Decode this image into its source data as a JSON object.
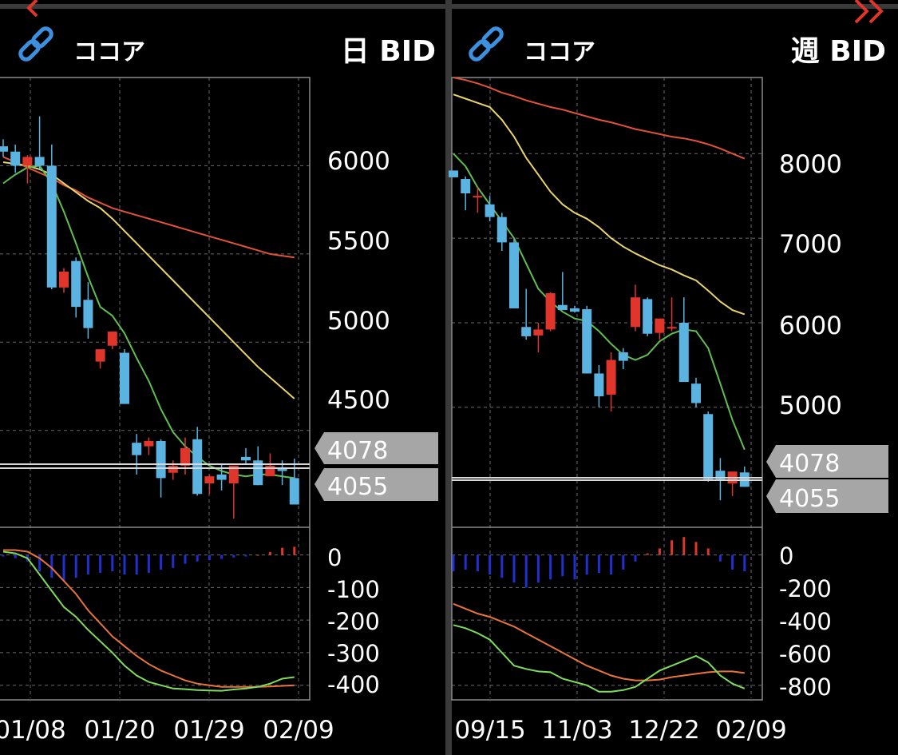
{
  "colors": {
    "background": "#000000",
    "grid": "#6a6a6a",
    "frame": "#8a8a8a",
    "separator": "#3a3a3a",
    "candle_up": "#e0352b",
    "candle_down": "#5ab3e0",
    "ma_short": "#5fbf4f",
    "ma_mid": "#e9d46a",
    "ma_long": "#e0533a",
    "macd_line": "#7ddc5a",
    "signal_line": "#e8743a",
    "hist_pos": "#e0352b",
    "hist_neg": "#1f2fd0",
    "price_tag": "#a6a6a6",
    "link_icon": "#3d8fe0",
    "nav_arrow": "#e0352b"
  },
  "nav": {
    "prev_icon": "chevron-left-icon",
    "next_icon": "double-chevron-right-icon"
  },
  "panels": [
    {
      "symbol": "ココア",
      "timeframe": "日 BID",
      "link_icon": "link-icon",
      "price_tags": [
        "4078",
        "4055"
      ],
      "price_ticks": [
        "6000",
        "5500",
        "5000",
        "4500"
      ],
      "macd_ticks": [
        "0",
        "-100",
        "-200",
        "-300",
        "-400"
      ],
      "date_ticks": [
        "01/08",
        "01/20",
        "01/29",
        "02/09"
      ]
    },
    {
      "symbol": "ココア",
      "timeframe": "週 BID",
      "link_icon": "link-icon",
      "price_tags": [
        "4078",
        "4055"
      ],
      "price_ticks": [
        "8000",
        "7000",
        "6000",
        "5000"
      ],
      "macd_ticks": [
        "0",
        "-200",
        "-400",
        "-600",
        "-800"
      ],
      "date_ticks": [
        "09/15",
        "11/03",
        "12/22",
        "02/09"
      ]
    }
  ],
  "chart_data": [
    {
      "type": "candlestick",
      "timeframe": "daily",
      "x": [
        "01/08",
        "01/20",
        "01/29",
        "02/09"
      ],
      "ylim": [
        3960,
        6500
      ],
      "price_ticks": [
        6000,
        5500,
        5000,
        4500
      ],
      "ohlc": [
        [
          6110,
          6150,
          6050,
          6080
        ],
        [
          6080,
          6120,
          5960,
          6000
        ],
        [
          6000,
          6060,
          5900,
          6050
        ],
        [
          6050,
          6280,
          5980,
          6000
        ],
        [
          6000,
          6120,
          5300,
          5310
        ],
        [
          5310,
          5420,
          5280,
          5400
        ],
        [
          5460,
          5480,
          5140,
          5200
        ],
        [
          5240,
          5340,
          5020,
          5080
        ],
        [
          4890,
          4960,
          4850,
          4960
        ],
        [
          4980,
          5060,
          4960,
          5060
        ],
        [
          4940,
          4960,
          4650,
          4650
        ],
        [
          4430,
          4480,
          4250,
          4360
        ],
        [
          4410,
          4460,
          4360,
          4440
        ],
        [
          4440,
          4450,
          4120,
          4230
        ],
        [
          4260,
          4330,
          4220,
          4300
        ],
        [
          4300,
          4460,
          4250,
          4400
        ],
        [
          4450,
          4520,
          4130,
          4140
        ],
        [
          4200,
          4250,
          4140,
          4240
        ],
        [
          4250,
          4310,
          4160,
          4220
        ],
        [
          4200,
          4280,
          4000,
          4300
        ],
        [
          4350,
          4400,
          4310,
          4330
        ],
        [
          4330,
          4410,
          4190,
          4190
        ],
        [
          4240,
          4370,
          4240,
          4300
        ],
        [
          4290,
          4330,
          4190,
          4270
        ],
        [
          4230,
          4340,
          4080,
          4080
        ]
      ],
      "ma_short": [
        5900,
        5950,
        5990,
        6000,
        5900,
        5740,
        5560,
        5370,
        5200,
        5150,
        5050,
        4910,
        4780,
        4620,
        4490,
        4410,
        4350,
        4300,
        4270,
        4250,
        4240,
        4250,
        4250,
        4240,
        4230
      ],
      "ma_mid": [
        6020,
        6010,
        6000,
        5980,
        5950,
        5900,
        5850,
        5800,
        5760,
        5700,
        5630,
        5560,
        5490,
        5420,
        5350,
        5280,
        5210,
        5140,
        5070,
        5000,
        4930,
        4860,
        4800,
        4740,
        4680
      ],
      "ma_long": [
        6050,
        6020,
        5990,
        5960,
        5930,
        5890,
        5860,
        5820,
        5790,
        5760,
        5740,
        5720,
        5700,
        5680,
        5660,
        5640,
        5620,
        5600,
        5580,
        5560,
        5540,
        5520,
        5500,
        5490,
        5480
      ],
      "macd_ylim": [
        -440,
        80
      ],
      "macd_ticks": [
        0,
        -100,
        -200,
        -300,
        -400
      ],
      "macd": [
        10,
        5,
        -10,
        -60,
        -110,
        -160,
        -190,
        -230,
        -265,
        -300,
        -340,
        -370,
        -390,
        -400,
        -410,
        -412,
        -415,
        -416,
        -417,
        -413,
        -410,
        -405,
        -395,
        -380,
        -375
      ],
      "signal": [
        15,
        15,
        10,
        -10,
        -40,
        -80,
        -120,
        -170,
        -210,
        -250,
        -280,
        -310,
        -335,
        -355,
        -370,
        -385,
        -395,
        -400,
        -405,
        -405,
        -405,
        -405,
        -404,
        -402,
        -400
      ],
      "histogram": [
        -5,
        -10,
        -20,
        -50,
        -70,
        -80,
        -70,
        -60,
        -55,
        -50,
        -60,
        -60,
        -55,
        -45,
        -40,
        -27,
        -20,
        -16,
        -12,
        -8,
        -5,
        0,
        9,
        22,
        25
      ]
    },
    {
      "type": "candlestick",
      "timeframe": "weekly",
      "x": [
        "09/15",
        "11/03",
        "12/22",
        "02/09"
      ],
      "ylim": [
        3600,
        8900
      ],
      "price_ticks": [
        8000,
        7000,
        6000,
        5000
      ],
      "ohlc": [
        [
          7800,
          7800,
          7720,
          7720
        ],
        [
          7700,
          7730,
          7330,
          7530
        ],
        [
          7500,
          7600,
          7300,
          7500
        ],
        [
          7400,
          7500,
          7200,
          7250
        ],
        [
          7250,
          7300,
          6850,
          6950
        ],
        [
          6950,
          7000,
          6180,
          6170
        ],
        [
          5950,
          6400,
          5800,
          5840
        ],
        [
          5850,
          6000,
          5650,
          5920
        ],
        [
          5920,
          6360,
          5900,
          6350
        ],
        [
          6210,
          6600,
          6150,
          6150
        ],
        [
          6170,
          6200,
          6120,
          6130
        ],
        [
          6160,
          6200,
          5400,
          5400
        ],
        [
          5400,
          5500,
          5000,
          5130
        ],
        [
          5150,
          5650,
          4950,
          5560
        ],
        [
          5650,
          5700,
          5450,
          5550
        ],
        [
          5950,
          6450,
          5900,
          6300
        ],
        [
          6280,
          6300,
          5840,
          5870
        ],
        [
          5880,
          6000,
          5800,
          6050
        ],
        [
          5950,
          6300,
          5900,
          5950
        ],
        [
          6000,
          6300,
          5300,
          5300
        ],
        [
          5280,
          5350,
          5000,
          5050
        ],
        [
          4920,
          4950,
          4120,
          4150
        ],
        [
          4250,
          4400,
          3900,
          4150
        ],
        [
          4100,
          4200,
          3950,
          4240
        ],
        [
          4230,
          4300,
          4060,
          4060
        ]
      ],
      "ma_short": [
        8000,
        7850,
        7600,
        7400,
        7200,
        7000,
        6700,
        6400,
        6250,
        6130,
        6050,
        6020,
        5900,
        5750,
        5620,
        5560,
        5620,
        5780,
        5870,
        5920,
        5900,
        5700,
        5280,
        4850,
        4500
      ],
      "ma_mid": [
        8700,
        8650,
        8600,
        8550,
        8400,
        8200,
        7950,
        7750,
        7550,
        7400,
        7300,
        7230,
        7130,
        7000,
        6900,
        6820,
        6750,
        6680,
        6630,
        6560,
        6500,
        6380,
        6250,
        6150,
        6100
      ],
      "ma_long": [
        8900,
        8870,
        8830,
        8780,
        8720,
        8680,
        8630,
        8590,
        8550,
        8520,
        8480,
        8440,
        8400,
        8370,
        8330,
        8290,
        8260,
        8230,
        8200,
        8180,
        8150,
        8110,
        8060,
        8000,
        7940
      ],
      "macd_ylim": [
        -880,
        160
      ],
      "macd_ticks": [
        0,
        -200,
        -400,
        -600,
        -800
      ],
      "macd": [
        -430,
        -450,
        -480,
        -520,
        -600,
        -680,
        -700,
        -715,
        -720,
        -760,
        -780,
        -800,
        -840,
        -840,
        -830,
        -810,
        -760,
        -710,
        -680,
        -650,
        -620,
        -660,
        -740,
        -790,
        -820
      ],
      "signal": [
        -300,
        -330,
        -360,
        -380,
        -410,
        -440,
        -480,
        -520,
        -560,
        -600,
        -640,
        -680,
        -710,
        -740,
        -760,
        -770,
        -770,
        -765,
        -750,
        -740,
        -730,
        -720,
        -715,
        -715,
        -725
      ],
      "histogram": [
        -100,
        -90,
        -100,
        -120,
        -140,
        -170,
        -200,
        -170,
        -150,
        -130,
        -150,
        -120,
        -110,
        -120,
        -90,
        -40,
        10,
        40,
        90,
        110,
        80,
        40,
        -40,
        -90,
        -100
      ]
    }
  ]
}
